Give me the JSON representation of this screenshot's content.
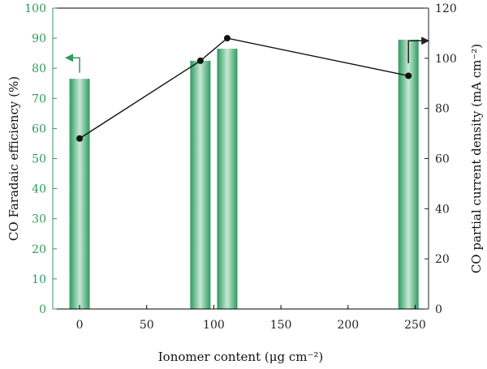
{
  "chart_data": {
    "type": "bar+line",
    "title": "",
    "xlabel": "Ionomer content (μg cm⁻²)",
    "xlim": [
      -20,
      260
    ],
    "xticks": [
      0,
      50,
      100,
      150,
      200,
      250
    ],
    "y_left": {
      "label": "CO Faradaic efficiency (%)",
      "lim": [
        0,
        100
      ],
      "ticks": [
        0,
        10,
        20,
        30,
        40,
        50,
        60,
        70,
        80,
        90,
        100
      ]
    },
    "y_right": {
      "label": "CO partial current density (mA cm⁻²)",
      "lim": [
        0,
        120
      ],
      "ticks": [
        0,
        20,
        40,
        60,
        80,
        100,
        120
      ]
    },
    "bars": {
      "axis": "left",
      "x": [
        0,
        90,
        110,
        245
      ],
      "values": [
        76.5,
        82.5,
        86.5,
        89.5
      ]
    },
    "line": {
      "axis": "right",
      "x": [
        0,
        90,
        110,
        245
      ],
      "values": [
        68,
        99,
        108,
        93
      ]
    },
    "colors": {
      "bar": "#2e9a5e",
      "bar_light": "#c6ead5",
      "left_axis": "#2e9a5e",
      "right_axis": "#222222",
      "line": "#111111"
    },
    "annotations": [
      {
        "type": "arrow",
        "direction": "left",
        "target_axis": "left",
        "near_x": 0
      },
      {
        "type": "arrow",
        "direction": "right",
        "target_axis": "right",
        "near_x": 245
      }
    ],
    "grid": false,
    "legend": "none"
  }
}
